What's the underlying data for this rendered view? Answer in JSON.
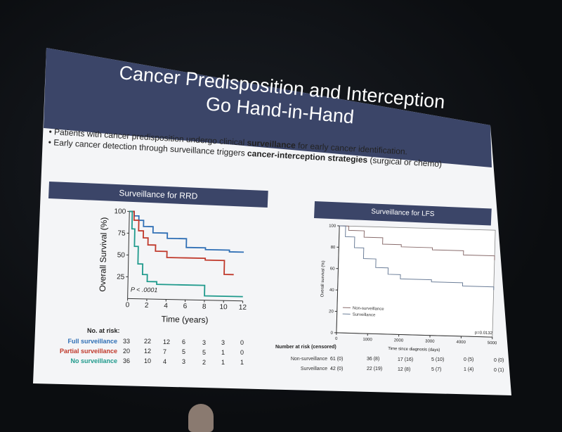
{
  "slide": {
    "title_line1": "Cancer Predisposition and Interception",
    "title_line2": "Go Hand-in-Hand",
    "bullets": [
      {
        "pre": "Patients with cancer predisposition undergo clinical ",
        "bold": "surveillance",
        "post": " for early cancer identification."
      },
      {
        "pre": "Early cancer detection through surveillance triggers ",
        "bold": "cancer-interception strategies",
        "post": " (surgical or chemo)"
      }
    ]
  },
  "chart_data": [
    {
      "type": "line",
      "title": "Surveillance for RRD",
      "xlabel": "Time (years)",
      "ylabel": "Overall Survival (%)",
      "xlim": [
        0,
        12
      ],
      "ylim": [
        0,
        100
      ],
      "x_ticks": [
        "0",
        "2",
        "4",
        "6",
        "8",
        "10",
        "12"
      ],
      "y_ticks": [
        "25",
        "50",
        "75",
        "100"
      ],
      "annotation": "P < .0001",
      "series": [
        {
          "name": "Full surveillance",
          "color": "#2f6fb5",
          "x": [
            0,
            0.5,
            1.0,
            1.5,
            2.5,
            4.0,
            6.0,
            8.0,
            10.5,
            12
          ],
          "y": [
            100,
            95,
            90,
            83,
            76,
            70,
            60,
            58,
            56,
            56
          ]
        },
        {
          "name": "Partial surveillance",
          "color": "#c0392b",
          "x": [
            0,
            0.5,
            1.0,
            1.5,
            2.0,
            2.8,
            4.0,
            6.0,
            8.0,
            10.0,
            10.0,
            11.0
          ],
          "y": [
            100,
            90,
            78,
            70,
            62,
            55,
            48,
            48,
            46,
            46,
            30,
            30
          ]
        },
        {
          "name": "No surveillance",
          "color": "#1f9a8c",
          "x": [
            0,
            0.3,
            0.6,
            1.0,
            1.5,
            2.0,
            3.0,
            5.0,
            8.0,
            8.0,
            12
          ],
          "y": [
            100,
            80,
            60,
            40,
            28,
            20,
            17,
            17,
            15,
            5,
            5
          ]
        }
      ],
      "risk_table": {
        "header": "No. at risk:",
        "rows": [
          {
            "label": "Full surveillance",
            "color": "#2f6fb5",
            "values": [
              "33",
              "22",
              "12",
              "6",
              "3",
              "3",
              "0"
            ]
          },
          {
            "label": "Partial surveillance",
            "color": "#c0392b",
            "values": [
              "20",
              "12",
              "7",
              "5",
              "5",
              "1",
              "0"
            ]
          },
          {
            "label": "No surveillance",
            "color": "#1f9a8c",
            "values": [
              "36",
              "10",
              "4",
              "3",
              "2",
              "1",
              "1"
            ]
          }
        ]
      }
    },
    {
      "type": "line",
      "title": "Surveillance for LFS",
      "xlabel": "Time since diagnosis (days)",
      "ylabel": "Overall survival (%)",
      "xlim": [
        0,
        5000
      ],
      "ylim": [
        0,
        100
      ],
      "x_ticks": [
        "0",
        "1000",
        "2000",
        "3000",
        "4000",
        "5000"
      ],
      "y_ticks": [
        "0",
        "20",
        "40",
        "60",
        "80",
        "100"
      ],
      "annotation": "p=0.0132",
      "series": [
        {
          "name": "Non-surveillance",
          "color": "#8a6d6d",
          "x": [
            0,
            300,
            800,
            1400,
            2000,
            3000,
            4000,
            5000
          ],
          "y": [
            100,
            96,
            90,
            84,
            82,
            80,
            76,
            72
          ]
        },
        {
          "name": "Surveillance",
          "color": "#6d7f99",
          "x": [
            0,
            200,
            500,
            800,
            1200,
            1600,
            2000,
            3000,
            4000,
            5000
          ],
          "y": [
            100,
            90,
            80,
            70,
            62,
            56,
            52,
            50,
            47,
            44
          ]
        }
      ],
      "risk_table": {
        "header": "Number at risk (censored)",
        "rows": [
          {
            "label": "Non-surveillance",
            "values": [
              "61 (0)",
              "36 (8)",
              "17 (16)",
              "5 (10)",
              "0 (5)",
              "0 (0)"
            ]
          },
          {
            "label": "Surveillance",
            "values": [
              "42 (0)",
              "22 (19)",
              "12 (8)",
              "5 (7)",
              "1 (4)",
              "0 (1)"
            ]
          }
        ]
      }
    }
  ]
}
